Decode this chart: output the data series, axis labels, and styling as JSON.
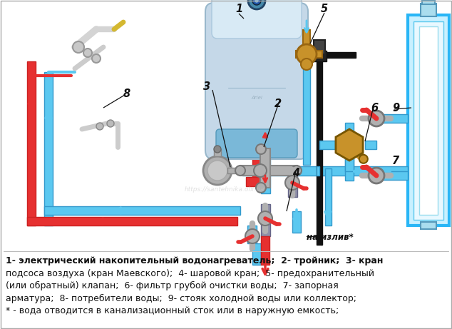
{
  "background_color": "#ffffff",
  "legend_lines": [
    "1- электрический накопительный водонагреватель;  2- тройник;  3- кран",
    "подсоса воздуха (кран Маевского);  4- шаровой кран;  5- предохранительный",
    "(или обратный) клапан;  6- фильтр грубой очистки воды;  7- запорная",
    "арматура;  8- потребители воды;  9- стояк холодной воды или коллектор;",
    "* - вода отводится в канализационный сток или в наружную емкость;"
  ],
  "na_izliv": "на излив*",
  "watermark": "https://santehnika.olx.ua",
  "pipe_blue": "#5bc8f0",
  "pipe_red": "#e63030",
  "pipe_dark": "#1a1a2e",
  "brass": "#c8922a",
  "silver": "#b0b0b0",
  "dark_blue_pipe": "#2255aa",
  "boiler_color": "#c5d8e8",
  "boiler_top": "#d8eaf5"
}
